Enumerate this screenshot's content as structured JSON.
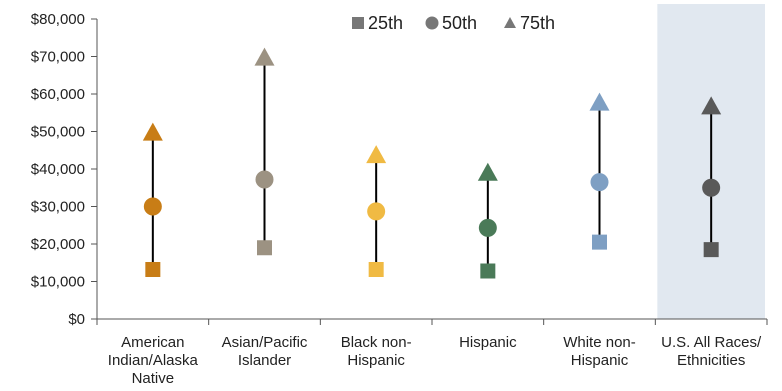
{
  "chart_data": {
    "type": "scatter",
    "categories": [
      [
        "American",
        "Indian/Alaska",
        "Native"
      ],
      [
        "Asian/Pacific",
        "Islander"
      ],
      [
        "Black non-",
        "Hispanic"
      ],
      [
        "Hispanic"
      ],
      [
        "White non-",
        "Hispanic"
      ],
      [
        "U.S. All Races/",
        "Ethnicities"
      ]
    ],
    "series": [
      {
        "name": "25th",
        "marker": "square",
        "values": [
          13200,
          19000,
          13200,
          12800,
          20500,
          18500
        ]
      },
      {
        "name": "50th",
        "marker": "circle",
        "values": [
          30000,
          37200,
          28700,
          24300,
          36500,
          35000
        ]
      },
      {
        "name": "75th",
        "marker": "triangle",
        "values": [
          49500,
          69500,
          43500,
          38800,
          57500,
          56500
        ]
      }
    ],
    "category_colors": [
      "#c87d16",
      "#9c9282",
      "#f0ba43",
      "#4a7a58",
      "#7e9fc3",
      "#595959"
    ],
    "highlight_category_index": 5,
    "highlight_color": "#e1e8f0",
    "legend_marker_color": "#777777",
    "legend_position": "top",
    "y_tick_labels": [
      "$0",
      "$10,000",
      "$20,000",
      "$30,000",
      "$40,000",
      "$50,000",
      "$60,000",
      "$70,000",
      "$80,000"
    ],
    "ylim": [
      0,
      80000
    ],
    "y_tick_step": 10000,
    "grid": false
  }
}
